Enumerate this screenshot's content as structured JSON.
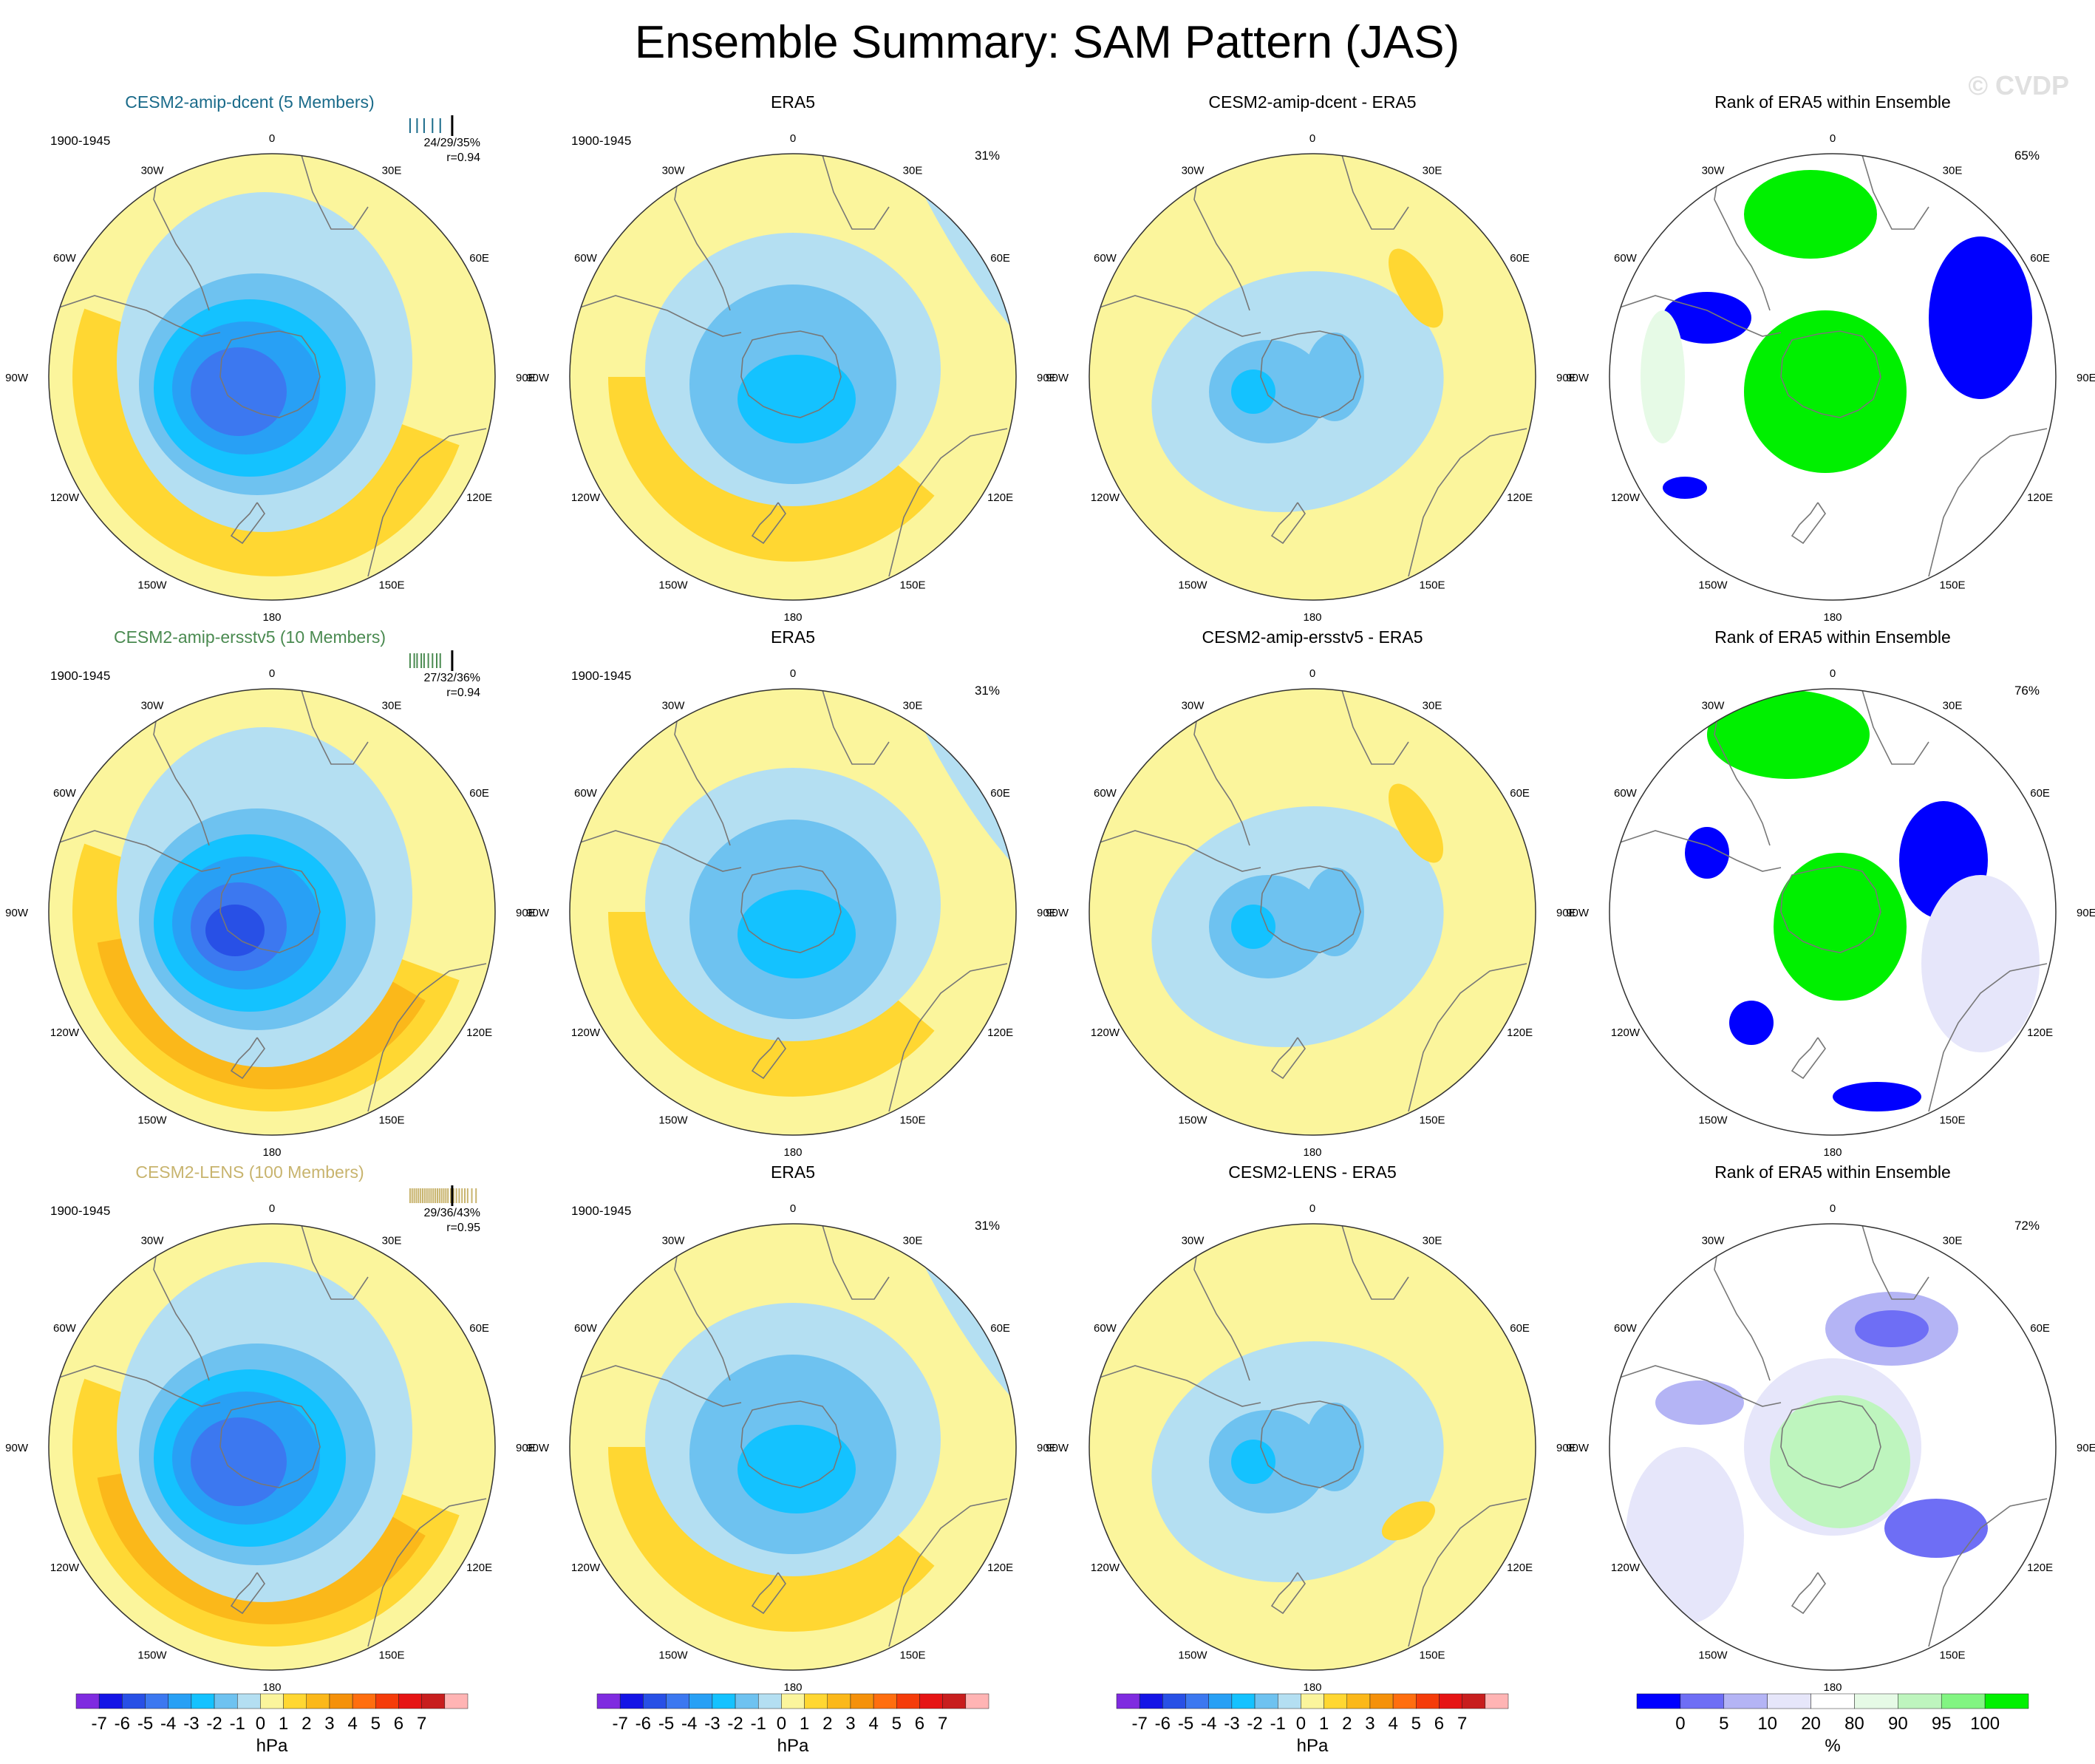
{
  "title": "Ensemble Summary: SAM Pattern (JAS)",
  "watermark": "© CVDP",
  "period": "1900-1945",
  "lon_labels": [
    "0",
    "30E",
    "60E",
    "90E",
    "120E",
    "150E",
    "180",
    "150W",
    "120W",
    "90W",
    "60W",
    "30W"
  ],
  "colors": {
    "land_line": "#777777",
    "scale": [
      "#7f2be0",
      "#1414e6",
      "#2850e6",
      "#3c78f0",
      "#28a0f5",
      "#14c2ff",
      "#6ec2f0",
      "#b4dff2",
      "#fbf59c",
      "#ffd732",
      "#fbb81a",
      "#f5910a",
      "#ff6e0f",
      "#f53c0a",
      "#e61414",
      "#c81e1e",
      "#ffb4b4"
    ],
    "rank_scale": [
      "#0000ff",
      "#6e6ef5",
      "#b4b4f5",
      "#e6e6fa",
      "#ffffff",
      "#e6fae6",
      "#bef5be",
      "#82f582",
      "#00f000"
    ]
  },
  "rows": [
    {
      "model": {
        "title": "CESM2-amip-dcent (5 Members)",
        "title_color": "#1a6b8a",
        "stats": "24/29/35%",
        "corr": "r=0.94",
        "tick_color": "#1a6b8a",
        "ticks": [
          0.02,
          0.12,
          0.22,
          0.34,
          0.45,
          0.62
        ]
      },
      "obs": {
        "title": "ERA5",
        "pct": "31%"
      },
      "diff": {
        "title": "CESM2-amip-dcent - ERA5"
      },
      "rank": {
        "title": "Rank of ERA5 within Ensemble",
        "pct": "65%"
      }
    },
    {
      "model": {
        "title": "CESM2-amip-ersstv5 (10 Members)",
        "title_color": "#4a8a50",
        "stats": "27/32/36%",
        "corr": "r=0.94",
        "tick_color": "#4a8a50",
        "ticks": [
          0.02,
          0.08,
          0.12,
          0.18,
          0.22,
          0.28,
          0.34,
          0.4,
          0.45,
          0.62
        ]
      },
      "obs": {
        "title": "ERA5",
        "pct": "31%"
      },
      "diff": {
        "title": "CESM2-amip-ersstv5 - ERA5"
      },
      "rank": {
        "title": "Rank of ERA5 within Ensemble",
        "pct": "76%"
      }
    },
    {
      "model": {
        "title": "CESM2-LENS (100 Members)",
        "title_color": "#c8b46e",
        "stats": "29/36/43%",
        "corr": "r=0.95",
        "tick_color": "#c8b46e",
        "ticks": [
          0.02,
          0.05,
          0.08,
          0.11,
          0.14,
          0.17,
          0.2,
          0.23,
          0.26,
          0.29,
          0.32,
          0.35,
          0.38,
          0.41,
          0.44,
          0.47,
          0.5,
          0.53,
          0.56,
          0.6,
          0.64,
          0.68,
          0.72,
          0.76,
          0.8,
          0.84,
          0.9,
          0.96
        ]
      },
      "obs": {
        "title": "ERA5",
        "pct": "31%"
      },
      "diff": {
        "title": "CESM2-LENS - ERA5"
      },
      "rank": {
        "title": "Rank of ERA5 within Ensemble",
        "pct": "72%"
      }
    }
  ],
  "colorbars": {
    "hpa": {
      "labels": [
        "-7",
        "-6",
        "-5",
        "-4",
        "-3",
        "-2",
        "-1",
        "0",
        "1",
        "2",
        "3",
        "4",
        "5",
        "6",
        "7"
      ],
      "unit": "hPa"
    },
    "rank": {
      "labels": [
        "0",
        "5",
        "10",
        "20",
        "80",
        "90",
        "95",
        "100"
      ],
      "unit": "%"
    }
  },
  "chart_data": {
    "type": "polar contour map panels (Southern Hemisphere SLP regression, hPa)",
    "title": "Ensemble Summary: SAM Pattern (JAS)",
    "columns": [
      "Model ensemble mean",
      "ERA5",
      "Model - ERA5",
      "Rank of ERA5 within Ensemble"
    ],
    "contour_levels_hPa": [
      -7,
      -6,
      -5,
      -4,
      -3,
      -2,
      -1,
      0,
      1,
      2,
      3,
      4,
      5,
      6,
      7
    ],
    "rank_levels_pct": [
      0,
      5,
      10,
      20,
      80,
      90,
      95,
      100
    ],
    "panels": [
      {
        "row": 1,
        "model": "CESM2-amip-dcent",
        "members": 5,
        "pattern_corr": 0.94,
        "explained_variance_pct": [
          24,
          29,
          35
        ],
        "obs_pct": 31,
        "rank_pct": 65
      },
      {
        "row": 2,
        "model": "CESM2-amip-ersstv5",
        "members": 10,
        "pattern_corr": 0.94,
        "explained_variance_pct": [
          27,
          32,
          36
        ],
        "obs_pct": 31,
        "rank_pct": 76
      },
      {
        "row": 3,
        "model": "CESM2-LENS",
        "members": 100,
        "pattern_corr": 0.95,
        "explained_variance_pct": [
          29,
          36,
          43
        ],
        "obs_pct": 31,
        "rank_pct": 72
      }
    ]
  }
}
